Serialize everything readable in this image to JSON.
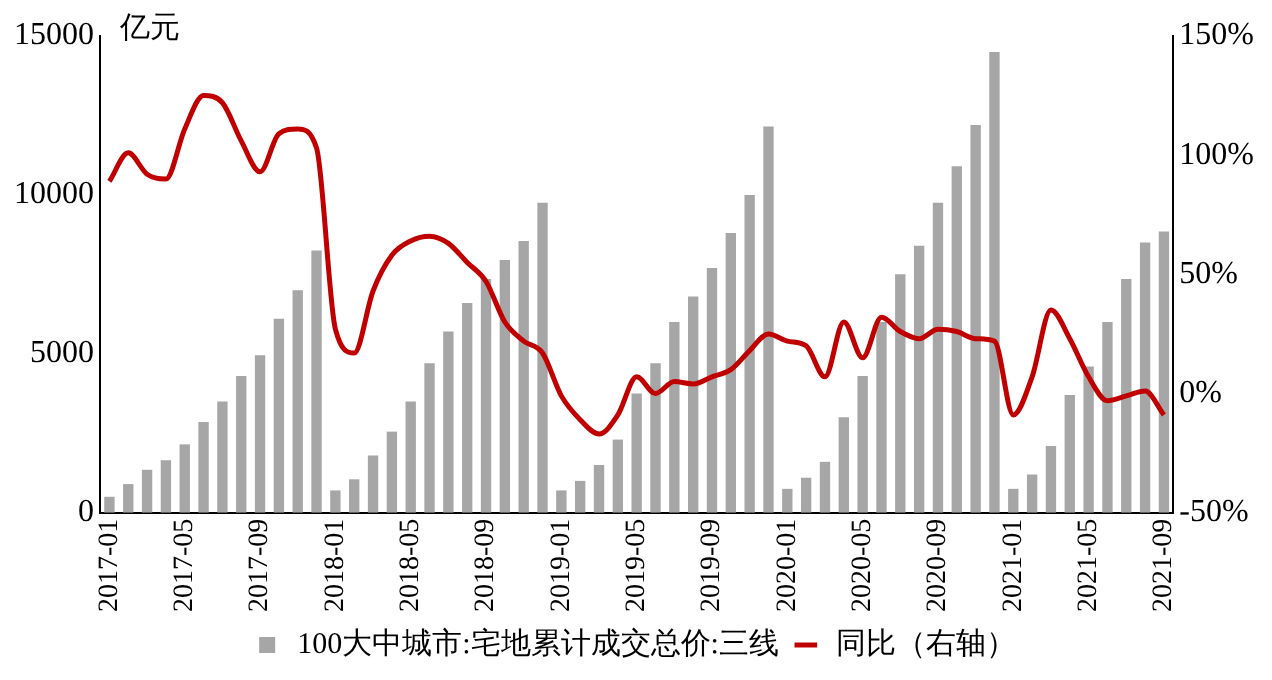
{
  "chart_data": {
    "type": "bar",
    "ylabel": "亿元",
    "categories": [
      "2017-01",
      null,
      null,
      null,
      "2017-05",
      null,
      null,
      null,
      "2017-09",
      null,
      null,
      null,
      "2018-01",
      null,
      null,
      null,
      "2018-05",
      null,
      null,
      null,
      "2018-09",
      null,
      null,
      null,
      "2019-01",
      null,
      null,
      null,
      "2019-05",
      null,
      null,
      null,
      "2019-09",
      null,
      null,
      null,
      "2020-01",
      null,
      null,
      null,
      "2020-05",
      null,
      null,
      null,
      "2020-09",
      null,
      null,
      null,
      "2021-01",
      null,
      null,
      null,
      "2021-05",
      null,
      null,
      null,
      "2021-09"
    ],
    "series": [
      {
        "name": "100大中城市:宅地累计成交总价:三线",
        "color": "#a6a6a6",
        "values": [
          500,
          900,
          1350,
          1650,
          2150,
          2850,
          3500,
          4300,
          4950,
          6100,
          7000,
          8250,
          700,
          1050,
          1800,
          2550,
          3500,
          4700,
          5700,
          6600,
          7350,
          7950,
          8550,
          9750,
          700,
          1000,
          1500,
          2300,
          3750,
          4700,
          6000,
          6800,
          7700,
          8800,
          10000,
          12150,
          750,
          1100,
          1600,
          3000,
          4300,
          6000,
          7500,
          8400,
          9750,
          10900,
          12200,
          14500,
          750,
          1200,
          2100,
          3700,
          4600,
          6000,
          7350,
          8500,
          8850
        ]
      },
      {
        "name": "同比（右轴）",
        "type": "line",
        "axis": "y2",
        "color": "#c00000",
        "values": [
          89,
          101,
          92,
          90,
          111,
          125,
          122,
          106,
          93,
          109,
          111,
          103,
          27,
          17,
          43,
          58,
          64,
          66,
          63,
          55,
          47,
          30,
          22,
          17,
          -1,
          -11,
          -17,
          -9,
          7,
          0,
          5,
          4,
          7,
          10,
          18,
          25,
          22,
          20,
          7,
          30,
          15,
          32,
          26,
          23,
          27,
          26,
          23,
          22,
          -9,
          7,
          35,
          23,
          7,
          -3,
          -1,
          1,
          -9
        ]
      }
    ],
    "ylim": [
      0,
      15000
    ],
    "yticks": [
      0,
      5000,
      10000,
      15000
    ],
    "y2lim": [
      -50,
      150
    ],
    "y2ticks": [
      {
        "value": -50,
        "label": "-50%"
      },
      {
        "value": 0,
        "label": "0%"
      },
      {
        "value": 50,
        "label": "50%"
      },
      {
        "value": 100,
        "label": "100%"
      },
      {
        "value": 150,
        "label": "150%"
      }
    ],
    "grid": false,
    "legend": "bottom"
  }
}
